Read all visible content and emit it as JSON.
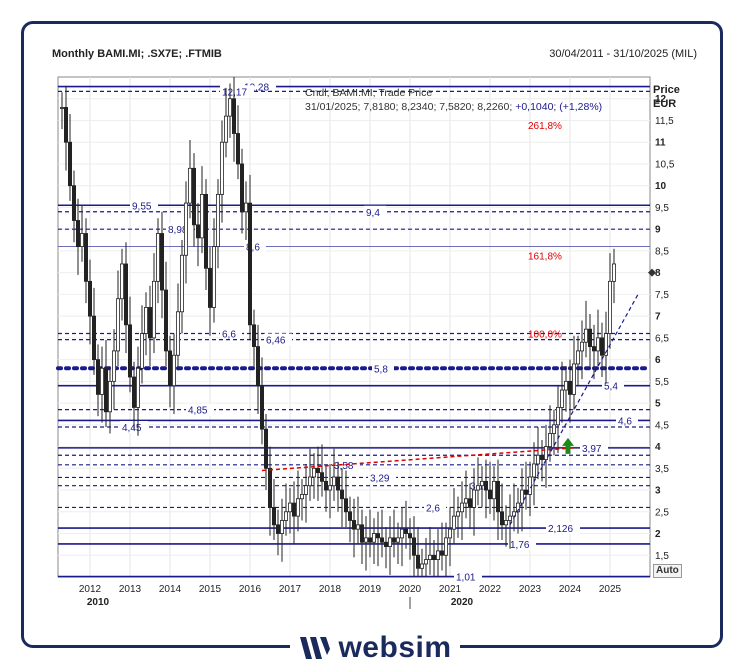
{
  "header": {
    "title": "Monthly BAMI.MI; .SX7E; .FTMIB",
    "date_range": "30/04/2011 - 31/10/2025 (MIL)"
  },
  "info": {
    "line1": "Cndl; BAMI.MI; Trade Price",
    "line2_values": "31/01/2025; 7,8180; 8,2340; 7,5820; 8,2260;",
    "line2_change": "+0,1040;",
    "line2_pct": "(+1,28%)"
  },
  "axis": {
    "price_label": "Price",
    "currency_label": "EUR",
    "auto_label": "Auto"
  },
  "brand": {
    "name": "websim"
  },
  "colors": {
    "navy": "#1a1a8c",
    "fib_red": "#e00000",
    "candle": "#222222",
    "up_arrow": "#1a8a1a",
    "frame": "#1b2a5c"
  },
  "chart_data": {
    "type": "candlestick",
    "series_name": "BAMI.MI",
    "interval": "monthly",
    "ylim": [
      1.0,
      12.5
    ],
    "y_ticks": [
      "1,5",
      "2",
      "2,5",
      "3",
      "3,5",
      "4",
      "4,5",
      "5",
      "5,5",
      "6",
      "6,5",
      "7",
      "7,5",
      "8",
      "8,5",
      "9",
      "9,5",
      "10",
      "10,5",
      "11",
      "11,5",
      "12"
    ],
    "x_ticks": [
      "2012",
      "2013",
      "2014",
      "2015",
      "2016",
      "2017",
      "2018",
      "2019",
      "2020",
      "2021",
      "2022",
      "2023",
      "2024",
      "2025"
    ],
    "x_decades": [
      "2010",
      "2020"
    ],
    "fib_labels": [
      {
        "text": "261,8%",
        "y": 11.4
      },
      {
        "text": "161,8%",
        "y": 8.4
      },
      {
        "text": "100,0%",
        "y": 6.6
      }
    ],
    "levels": [
      {
        "y": 12.28,
        "label": "12,28",
        "style": "solid",
        "label_x": 2015.85
      },
      {
        "y": 12.17,
        "label": "12,17",
        "style": "dashed",
        "label_x": 2015.3
      },
      {
        "y": 9.55,
        "label": "9,55",
        "style": "solid",
        "label_x": 2013.05
      },
      {
        "y": 9.4,
        "label": "9,4",
        "style": "dashed",
        "label_x": 2018.9
      },
      {
        "y": 9.0,
        "label": "8,98",
        "style": "dashed",
        "label_x": 2013.95
      },
      {
        "y": 8.6,
        "label": "8,6",
        "style": "thin",
        "label_x": 2015.9
      },
      {
        "y": 6.6,
        "label": "6,6",
        "style": "dashed",
        "label_x": 2015.3
      },
      {
        "y": 6.46,
        "label": "6,46",
        "style": "dashed",
        "label_x": 2016.4
      },
      {
        "y": 5.8,
        "label": "5,8",
        "style": "dotted",
        "label_x": 2019.1
      },
      {
        "y": 5.4,
        "label": "5,4",
        "style": "solid",
        "label_x": 2024.85
      },
      {
        "y": 4.85,
        "label": "4,85",
        "style": "dashed",
        "label_x": 2014.45
      },
      {
        "y": 4.6,
        "label": "4,6",
        "style": "solid",
        "label_x": 2025.2
      },
      {
        "y": 4.45,
        "label": "4,45",
        "style": "dashed",
        "label_x": 2012.8
      },
      {
        "y": 3.97,
        "label": "3,97",
        "style": "solid",
        "label_x": 2024.3
      },
      {
        "y": 3.8,
        "label": "",
        "style": "dashed",
        "label_x": 0
      },
      {
        "y": 3.58,
        "label": "3,58",
        "style": "dashed",
        "label_x": 2018.1
      },
      {
        "y": 3.29,
        "label": "3,29",
        "style": "dashed",
        "label_x": 2019.0
      },
      {
        "y": 3.1,
        "label": "3,1",
        "style": "dashed",
        "label_x": 2021.5
      },
      {
        "y": 2.6,
        "label": "2,6",
        "style": "dashed",
        "label_x": 2020.4
      },
      {
        "y": 2.126,
        "label": "2,126",
        "style": "solid",
        "label_x": 2023.45
      },
      {
        "y": 1.76,
        "label": "1,76",
        "style": "solid",
        "label_x": 2022.5
      },
      {
        "y": 1.01,
        "label": "1,01",
        "style": "solid",
        "label_x": 2021.15
      }
    ],
    "red_trendline": [
      {
        "x": 2016.3,
        "y": 3.45
      },
      {
        "x": 2024.1,
        "y": 3.97
      }
    ],
    "blue_trendline": [
      {
        "x": 2022.5,
        "y": 2.2
      },
      {
        "x": 2025.7,
        "y": 7.5
      }
    ],
    "series_close": [
      [
        2011.3,
        11.8
      ],
      [
        2011.4,
        11.0
      ],
      [
        2011.5,
        10.0
      ],
      [
        2011.6,
        9.2
      ],
      [
        2011.7,
        8.6
      ],
      [
        2011.8,
        8.9
      ],
      [
        2011.9,
        7.8
      ],
      [
        2012.0,
        7.0
      ],
      [
        2012.1,
        6.0
      ],
      [
        2012.2,
        5.2
      ],
      [
        2012.3,
        5.8
      ],
      [
        2012.4,
        4.8
      ],
      [
        2012.5,
        5.5
      ],
      [
        2012.6,
        6.2
      ],
      [
        2012.7,
        7.4
      ],
      [
        2012.8,
        8.2
      ],
      [
        2012.9,
        6.8
      ],
      [
        2013.0,
        5.6
      ],
      [
        2013.1,
        4.9
      ],
      [
        2013.2,
        5.8
      ],
      [
        2013.3,
        6.6
      ],
      [
        2013.4,
        7.2
      ],
      [
        2013.5,
        6.5
      ],
      [
        2013.6,
        7.8
      ],
      [
        2013.7,
        8.9
      ],
      [
        2013.8,
        7.6
      ],
      [
        2013.9,
        6.2
      ],
      [
        2014.0,
        5.4
      ],
      [
        2014.1,
        6.1
      ],
      [
        2014.2,
        7.1
      ],
      [
        2014.3,
        8.4
      ],
      [
        2014.4,
        9.6
      ],
      [
        2014.5,
        10.4
      ],
      [
        2014.6,
        9.1
      ],
      [
        2014.7,
        8.8
      ],
      [
        2014.8,
        9.8
      ],
      [
        2014.9,
        8.1
      ],
      [
        2015.0,
        7.2
      ],
      [
        2015.1,
        8.6
      ],
      [
        2015.2,
        9.8
      ],
      [
        2015.3,
        11.0
      ],
      [
        2015.4,
        11.6
      ],
      [
        2015.5,
        12.0
      ],
      [
        2015.6,
        11.2
      ],
      [
        2015.7,
        10.5
      ],
      [
        2015.8,
        9.4
      ],
      [
        2015.9,
        9.6
      ],
      [
        2016.0,
        6.8
      ],
      [
        2016.1,
        6.3
      ],
      [
        2016.2,
        5.4
      ],
      [
        2016.3,
        4.4
      ],
      [
        2016.4,
        3.5
      ],
      [
        2016.5,
        2.6
      ],
      [
        2016.6,
        2.2
      ],
      [
        2016.7,
        2.0
      ],
      [
        2016.8,
        2.3
      ],
      [
        2016.9,
        2.5
      ],
      [
        2017.0,
        2.7
      ],
      [
        2017.1,
        2.4
      ],
      [
        2017.2,
        2.8
      ],
      [
        2017.3,
        2.9
      ],
      [
        2017.4,
        3.1
      ],
      [
        2017.5,
        3.3
      ],
      [
        2017.6,
        3.5
      ],
      [
        2017.7,
        3.4
      ],
      [
        2017.8,
        3.2
      ],
      [
        2017.9,
        3.0
      ],
      [
        2018.0,
        3.1
      ],
      [
        2018.1,
        3.3
      ],
      [
        2018.2,
        3.0
      ],
      [
        2018.3,
        2.8
      ],
      [
        2018.4,
        2.5
      ],
      [
        2018.5,
        2.3
      ],
      [
        2018.6,
        2.1
      ],
      [
        2018.7,
        2.2
      ],
      [
        2018.8,
        1.8
      ],
      [
        2018.9,
        1.9
      ],
      [
        2019.0,
        1.8
      ],
      [
        2019.1,
        2.0
      ],
      [
        2019.2,
        1.9
      ],
      [
        2019.3,
        1.8
      ],
      [
        2019.4,
        1.7
      ],
      [
        2019.5,
        1.9
      ],
      [
        2019.6,
        1.8
      ],
      [
        2019.7,
        1.9
      ],
      [
        2019.8,
        2.1
      ],
      [
        2019.9,
        2.0
      ],
      [
        2020.0,
        1.9
      ],
      [
        2020.1,
        1.5
      ],
      [
        2020.2,
        1.2
      ],
      [
        2020.3,
        1.3
      ],
      [
        2020.4,
        1.4
      ],
      [
        2020.5,
        1.5
      ],
      [
        2020.6,
        1.4
      ],
      [
        2020.7,
        1.6
      ],
      [
        2020.8,
        1.5
      ],
      [
        2020.9,
        1.9
      ],
      [
        2021.0,
        2.1
      ],
      [
        2021.1,
        2.4
      ],
      [
        2021.2,
        2.5
      ],
      [
        2021.3,
        2.7
      ],
      [
        2021.4,
        2.8
      ],
      [
        2021.5,
        2.6
      ],
      [
        2021.6,
        3.0
      ],
      [
        2021.7,
        3.1
      ],
      [
        2021.8,
        3.2
      ],
      [
        2021.9,
        3.0
      ],
      [
        2022.0,
        2.8
      ],
      [
        2022.1,
        3.2
      ],
      [
        2022.2,
        2.5
      ],
      [
        2022.3,
        2.2
      ],
      [
        2022.4,
        2.3
      ],
      [
        2022.5,
        2.4
      ],
      [
        2022.6,
        2.5
      ],
      [
        2022.7,
        2.7
      ],
      [
        2022.8,
        3.0
      ],
      [
        2022.9,
        2.9
      ],
      [
        2023.0,
        3.3
      ],
      [
        2023.1,
        3.6
      ],
      [
        2023.2,
        3.8
      ],
      [
        2023.3,
        3.7
      ],
      [
        2023.4,
        4.0
      ],
      [
        2023.5,
        4.3
      ],
      [
        2023.6,
        4.5
      ],
      [
        2023.7,
        4.9
      ],
      [
        2023.8,
        5.3
      ],
      [
        2023.9,
        5.5
      ],
      [
        2024.0,
        5.2
      ],
      [
        2024.1,
        5.9
      ],
      [
        2024.2,
        6.2
      ],
      [
        2024.3,
        6.4
      ],
      [
        2024.4,
        6.7
      ],
      [
        2024.5,
        6.3
      ],
      [
        2024.6,
        6.2
      ],
      [
        2024.7,
        6.5
      ],
      [
        2024.8,
        6.1
      ],
      [
        2024.9,
        6.6
      ],
      [
        2025.0,
        7.8
      ],
      [
        2025.1,
        8.2
      ]
    ],
    "marker_last": {
      "x": 2025.85,
      "y": 8.0
    }
  }
}
